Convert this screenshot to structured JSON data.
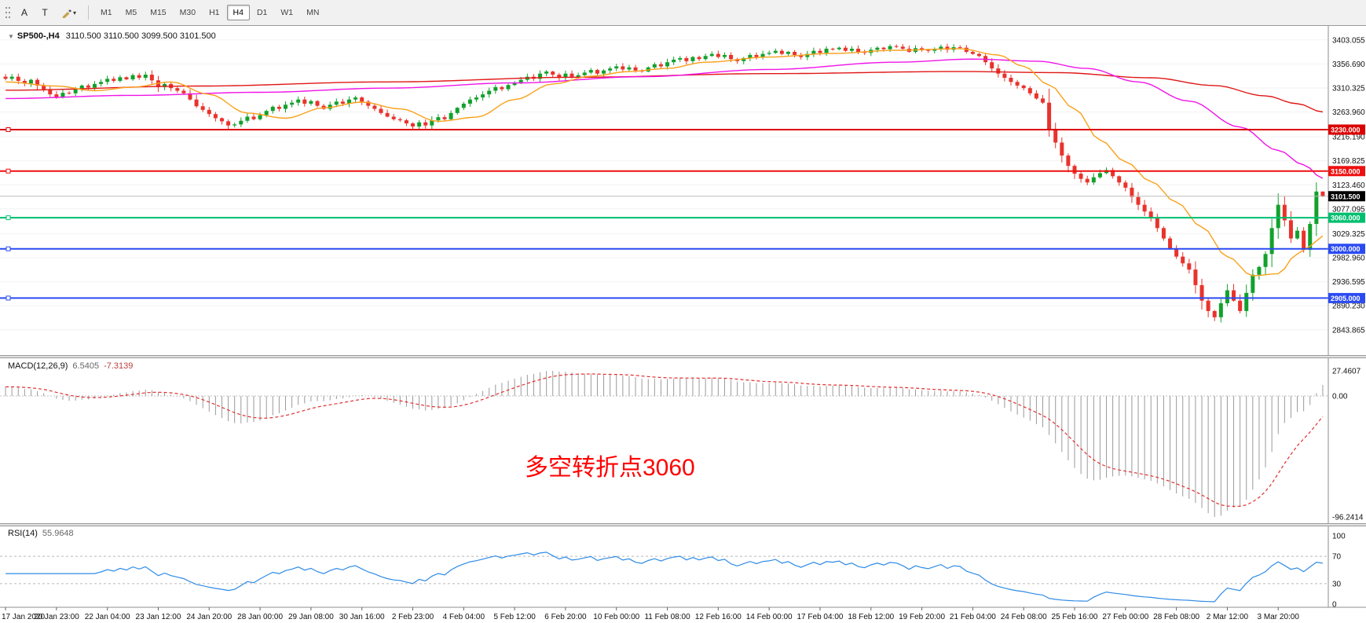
{
  "toolbar": {
    "tool_a": "A",
    "tool_t": "T",
    "timeframes": [
      "M1",
      "M5",
      "M15",
      "M30",
      "H1",
      "H4",
      "D1",
      "W1",
      "MN"
    ],
    "active_timeframe": "H4"
  },
  "header": {
    "title": "SP500-,H4",
    "ohlc": "3110.500 3110.500 3099.500 3101.500",
    "dropdown_icon": "▼"
  },
  "chart": {
    "price_axis": [
      "3403.055",
      "3356.690",
      "3310.325",
      "3263.960",
      "3216.190",
      "3169.825",
      "3123.460",
      "3077.095",
      "3029.325",
      "2982.960",
      "2936.595",
      "2890.230",
      "2843.865"
    ],
    "time_axis": [
      "17 Jan 2020",
      "20 Jan 23:00",
      "22 Jan 04:00",
      "23 Jan 12:00",
      "24 Jan 20:00",
      "28 Jan 00:00",
      "29 Jan 08:00",
      "30 Jan 16:00",
      "2 Feb 23:00",
      "4 Feb 04:00",
      "5 Feb 12:00",
      "6 Feb 20:00",
      "10 Feb 00:00",
      "11 Feb 08:00",
      "12 Feb 16:00",
      "14 Feb 00:00",
      "17 Feb 04:00",
      "18 Feb 12:00",
      "19 Feb 20:00",
      "21 Feb 04:00",
      "24 Feb 08:00",
      "25 Feb 16:00",
      "27 Feb 00:00",
      "28 Feb 08:00",
      "2 Mar 12:00",
      "3 Mar 20:00"
    ],
    "hlines": [
      {
        "price": 3230,
        "label": "3230.000",
        "color": "#dd0000"
      },
      {
        "price": 3150,
        "label": "3150.000",
        "color": "#ee1111"
      },
      {
        "price": 3060,
        "label": "3060.000",
        "color": "#00bf6f"
      },
      {
        "price": 3000,
        "label": "3000.000",
        "color": "#2b4bf2"
      },
      {
        "price": 2905,
        "label": "2905.000",
        "color": "#2b4bf2"
      }
    ],
    "current_price": {
      "price": 3101.5,
      "label": "3101.500",
      "bg": "#000000"
    },
    "bid_line_color": "#bdbdbd",
    "up_color": "#12a12c",
    "down_color": "#e8332c",
    "grid_color": "#f2f2f2"
  },
  "chart_data": {
    "type": "candlestick",
    "symbol": "SP500-",
    "timeframe": "H4",
    "closes": [
      3328,
      3332,
      3324,
      3319,
      3326,
      3315,
      3308,
      3298,
      3292,
      3301,
      3300,
      3309,
      3315,
      3311,
      3318,
      3322,
      3328,
      3324,
      3331,
      3327,
      3335,
      3330,
      3336,
      3325,
      3312,
      3318,
      3310,
      3305,
      3300,
      3288,
      3275,
      3268,
      3260,
      3252,
      3246,
      3238,
      3240,
      3247,
      3255,
      3250,
      3258,
      3266,
      3274,
      3270,
      3278,
      3282,
      3288,
      3280,
      3285,
      3276,
      3270,
      3278,
      3284,
      3280,
      3288,
      3292,
      3284,
      3276,
      3270,
      3262,
      3255,
      3250,
      3248,
      3242,
      3236,
      3244,
      3238,
      3248,
      3254,
      3250,
      3262,
      3272,
      3280,
      3288,
      3292,
      3298,
      3305,
      3312,
      3308,
      3316,
      3320,
      3326,
      3332,
      3328,
      3338,
      3342,
      3336,
      3330,
      3338,
      3332,
      3335,
      3340,
      3345,
      3338,
      3344,
      3348,
      3352,
      3346,
      3350,
      3344,
      3342,
      3350,
      3356,
      3352,
      3360,
      3365,
      3368,
      3362,
      3370,
      3366,
      3372,
      3376,
      3370,
      3374,
      3366,
      3362,
      3368,
      3374,
      3370,
      3376,
      3378,
      3382,
      3376,
      3380,
      3374,
      3370,
      3376,
      3382,
      3378,
      3386,
      3385,
      3388,
      3382,
      3386,
      3380,
      3378,
      3384,
      3388,
      3385,
      3391,
      3390,
      3386,
      3380,
      3387,
      3384,
      3382,
      3386,
      3390,
      3384,
      3389,
      3388,
      3380,
      3376,
      3372,
      3360,
      3348,
      3338,
      3330,
      3322,
      3315,
      3310,
      3300,
      3290,
      3282,
      3230,
      3205,
      3180,
      3160,
      3145,
      3135,
      3128,
      3138,
      3146,
      3152,
      3140,
      3128,
      3118,
      3100,
      3085,
      3072,
      3060,
      3040,
      3020,
      3000,
      2985,
      2972,
      2960,
      2930,
      2900,
      2880,
      2868,
      2895,
      2920,
      2900,
      2880,
      2915,
      2950,
      2965,
      2990,
      3040,
      3085,
      3055,
      3020,
      3035,
      2998,
      3048,
      3110.5,
      3101.5
    ],
    "last_bar": {
      "open": 3110.5,
      "high": 3110.5,
      "low": 3099.5,
      "close": 3101.5
    },
    "ma_fast": {
      "color": "#f9a11b",
      "points": [
        [
          0,
          3322
        ],
        [
          8,
          3314
        ],
        [
          14,
          3305
        ],
        [
          20,
          3312
        ],
        [
          26,
          3322
        ],
        [
          32,
          3298
        ],
        [
          38,
          3262
        ],
        [
          44,
          3252
        ],
        [
          50,
          3272
        ],
        [
          56,
          3283
        ],
        [
          62,
          3270
        ],
        [
          68,
          3246
        ],
        [
          74,
          3254
        ],
        [
          80,
          3288
        ],
        [
          86,
          3318
        ],
        [
          92,
          3333
        ],
        [
          98,
          3342
        ],
        [
          104,
          3348
        ],
        [
          110,
          3360
        ],
        [
          120,
          3370
        ],
        [
          130,
          3377
        ],
        [
          140,
          3383
        ],
        [
          150,
          3386
        ],
        [
          156,
          3374
        ],
        [
          160,
          3352
        ],
        [
          164,
          3316
        ],
        [
          168,
          3270
        ],
        [
          172,
          3210
        ],
        [
          176,
          3168
        ],
        [
          180,
          3130
        ],
        [
          184,
          3090
        ],
        [
          188,
          3042
        ],
        [
          192,
          2985
        ],
        [
          196,
          2948
        ],
        [
          200,
          2952
        ],
        [
          203,
          2990
        ],
        [
          205,
          3005
        ],
        [
          207,
          3025
        ]
      ]
    },
    "ma_mid": {
      "color": "#f014e8",
      "points": [
        [
          0,
          3290
        ],
        [
          20,
          3296
        ],
        [
          40,
          3302
        ],
        [
          60,
          3310
        ],
        [
          80,
          3320
        ],
        [
          100,
          3332
        ],
        [
          120,
          3346
        ],
        [
          140,
          3360
        ],
        [
          152,
          3366
        ],
        [
          162,
          3362
        ],
        [
          170,
          3348
        ],
        [
          178,
          3322
        ],
        [
          186,
          3285
        ],
        [
          194,
          3235
        ],
        [
          200,
          3190
        ],
        [
          204,
          3162
        ],
        [
          207,
          3136
        ]
      ]
    },
    "ma_slow": {
      "color": "#e01717",
      "points": [
        [
          0,
          3306
        ],
        [
          30,
          3314
        ],
        [
          60,
          3322
        ],
        [
          90,
          3331
        ],
        [
          120,
          3338
        ],
        [
          150,
          3342
        ],
        [
          165,
          3340
        ],
        [
          180,
          3330
        ],
        [
          190,
          3315
        ],
        [
          198,
          3295
        ],
        [
          203,
          3280
        ],
        [
          207,
          3264
        ]
      ]
    }
  },
  "macd_panel": {
    "label": "MACD(12,26,9)",
    "main_value": "6.5405",
    "signal_value": "-7.3139",
    "axis": {
      "max": "27.4607",
      "zero": "0.00",
      "min": "-96.2414"
    },
    "histogram_color": "#9a9a9a",
    "signal_color": "#e03030",
    "annotation": {
      "text": "多空转折点3060",
      "color": "#ff0000"
    }
  },
  "rsi_panel": {
    "label": "RSI(14)",
    "value": "55.9648",
    "axis": [
      "100",
      "70",
      "30",
      "0"
    ],
    "levels": [
      70,
      30
    ],
    "line_color": "#2e8be6"
  }
}
